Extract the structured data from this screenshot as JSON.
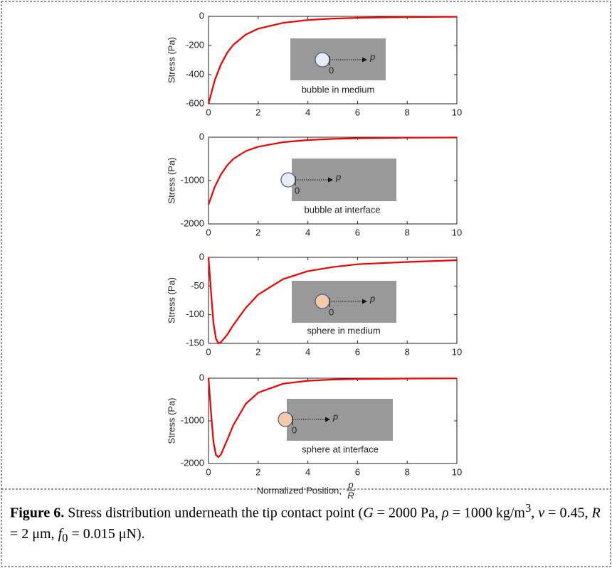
{
  "chart_data": [
    {
      "type": "line",
      "ylabel": "Stress (Pa)",
      "color": "#ee0000",
      "x": [
        0,
        0.25,
        0.5,
        0.75,
        1,
        1.5,
        2,
        3,
        4,
        5,
        6,
        8,
        10
      ],
      "values": [
        -600,
        -440,
        -330,
        -250,
        -195,
        -125,
        -85,
        -45,
        -25,
        -15,
        -10,
        -5,
        -3
      ],
      "xlim": [
        0,
        10
      ],
      "xticks": [
        0,
        2,
        4,
        6,
        8,
        10
      ],
      "ylim": [
        -600,
        0
      ],
      "yticks": [
        -600,
        -400,
        -200,
        0
      ],
      "inset": {
        "origin": "0",
        "axis": "p",
        "label": "bubble in medium"
      }
    },
    {
      "type": "line",
      "ylabel": "Stress (Pa)",
      "color": "#ee0000",
      "x": [
        0,
        0.25,
        0.5,
        0.75,
        1,
        1.5,
        2,
        3,
        4,
        5,
        6,
        8,
        10
      ],
      "values": [
        -1550,
        -1150,
        -860,
        -650,
        -500,
        -320,
        -220,
        -115,
        -65,
        -40,
        -25,
        -12,
        -7
      ],
      "xlim": [
        0,
        10
      ],
      "xticks": [
        0,
        2,
        4,
        6,
        8,
        10
      ],
      "ylim": [
        -2000,
        0
      ],
      "yticks": [
        -2000,
        -1000,
        0
      ],
      "inset": {
        "origin": "0",
        "axis": "p",
        "label": "bubble at interface"
      }
    },
    {
      "type": "line",
      "ylabel": "Stress (Pa)",
      "color": "#ee0000",
      "x": [
        0,
        0.1,
        0.2,
        0.3,
        0.4,
        0.5,
        0.75,
        1,
        1.5,
        2,
        3,
        4,
        5,
        6,
        8,
        10
      ],
      "values": [
        0,
        -60,
        -115,
        -142,
        -150,
        -148,
        -135,
        -118,
        -88,
        -65,
        -38,
        -24,
        -17,
        -12,
        -8,
        -5
      ],
      "xlim": [
        0,
        10
      ],
      "xticks": [
        0,
        2,
        4,
        6,
        8,
        10
      ],
      "ylim": [
        -150,
        0
      ],
      "yticks": [
        -150,
        -100,
        -50,
        0
      ],
      "inset": {
        "origin": "0",
        "axis": "p",
        "label": "sphere in medium"
      }
    },
    {
      "type": "line",
      "ylabel": "Stress (Pa)",
      "color": "#ee0000",
      "x": [
        0,
        0.1,
        0.2,
        0.3,
        0.4,
        0.5,
        0.75,
        1,
        1.5,
        2,
        3,
        4,
        5,
        6,
        8,
        10
      ],
      "values": [
        0,
        -800,
        -1500,
        -1800,
        -1850,
        -1790,
        -1450,
        -1100,
        -600,
        -340,
        -130,
        -60,
        -32,
        -20,
        -9,
        -5
      ],
      "xlim": [
        0,
        10
      ],
      "xticks": [
        0,
        2,
        4,
        6,
        8,
        10
      ],
      "ylim": [
        -2000,
        0
      ],
      "yticks": [
        -2000,
        -1000,
        0
      ],
      "xlabel": "Normalized Position,",
      "xlabel_num": "p",
      "xlabel_den": "R",
      "inset": {
        "origin": "0",
        "axis": "p",
        "label": "sphere at interface"
      }
    }
  ],
  "caption": [
    "Figure 6.",
    " Stress distribution underneath the tip contact point  (",
    "G",
    " = 2000 Pa, ",
    "ρ",
    " = 1000 kg/m",
    "3",
    ", ",
    "v",
    " = 0.45, ",
    "R",
    " = 2 μm, ",
    "f",
    "0",
    " = 0.015 μN)."
  ]
}
